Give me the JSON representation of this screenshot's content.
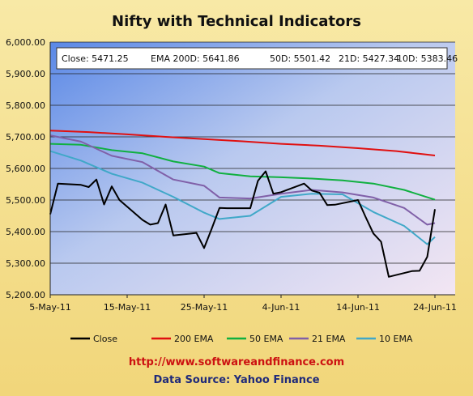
{
  "chart_data": {
    "type": "line",
    "title": "Nifty with Technical Indicators",
    "annotation": {
      "close": "Close: 5471.25",
      "ema200": "EMA  200D: 5641.86",
      "ema50": "50D: 5501.42",
      "ema21": "21D: 5427.34",
      "ema10": "10D: 5383.46"
    },
    "ylim": [
      5200,
      6000
    ],
    "y_ticks": [
      "5,200.00",
      "5,300.00",
      "5,400.00",
      "5,500.00",
      "5,600.00",
      "5,700.00",
      "5,800.00",
      "5,900.00",
      "6,000.00"
    ],
    "y_tick_values": [
      5200,
      5300,
      5400,
      5500,
      5600,
      5700,
      5800,
      5900,
      6000
    ],
    "x_ticks": [
      {
        "label": "5-May-11",
        "day": 0
      },
      {
        "label": "15-May-11",
        "day": 10
      },
      {
        "label": "25-May-11",
        "day": 20
      },
      {
        "label": "4-Jun-11",
        "day": 30
      },
      {
        "label": "14-Jun-11",
        "day": 40
      },
      {
        "label": "24-Jun-11",
        "day": 50
      }
    ],
    "x_range": [
      0,
      50
    ],
    "grid": "horizontal",
    "legend_position": "bottom",
    "series": [
      {
        "name": "Close",
        "color": "#000000",
        "days": [
          0,
          1,
          4,
          5,
          6,
          7,
          8,
          9,
          12,
          13,
          14,
          15,
          16,
          19,
          20,
          21,
          22,
          23,
          26,
          27,
          28,
          29,
          30,
          33,
          34,
          35,
          36,
          37,
          40,
          41,
          42,
          43,
          44,
          47,
          48,
          49,
          50
        ],
        "values": [
          5455,
          5552,
          5548,
          5541,
          5565,
          5486,
          5543,
          5500,
          5437,
          5422,
          5427,
          5486,
          5388,
          5396,
          5348,
          5410,
          5475,
          5474,
          5474,
          5561,
          5591,
          5520,
          5525,
          5552,
          5530,
          5523,
          5484,
          5485,
          5500,
          5446,
          5394,
          5368,
          5257,
          5275,
          5276,
          5320,
          5471
        ]
      },
      {
        "name": "200 EMA",
        "color": "#e01010",
        "days": [
          0,
          5,
          10,
          15,
          20,
          25,
          30,
          35,
          40,
          45,
          50
        ],
        "values": [
          5720,
          5715,
          5708,
          5700,
          5693,
          5686,
          5678,
          5672,
          5664,
          5655,
          5641
        ]
      },
      {
        "name": "50 EMA",
        "color": "#10b040",
        "days": [
          0,
          4,
          8,
          12,
          16,
          20,
          22,
          26,
          30,
          34,
          38,
          42,
          46,
          50
        ],
        "values": [
          5678,
          5675,
          5658,
          5648,
          5622,
          5606,
          5585,
          5575,
          5572,
          5568,
          5562,
          5552,
          5532,
          5501
        ]
      },
      {
        "name": "21 EMA",
        "color": "#8060a8",
        "days": [
          0,
          4,
          8,
          12,
          16,
          20,
          22,
          26,
          30,
          34,
          38,
          42,
          46,
          49,
          50
        ],
        "values": [
          5705,
          5685,
          5640,
          5620,
          5565,
          5545,
          5508,
          5505,
          5520,
          5532,
          5524,
          5508,
          5475,
          5422,
          5427
        ]
      },
      {
        "name": "10 EMA",
        "color": "#40a8c8",
        "days": [
          0,
          4,
          8,
          12,
          16,
          20,
          22,
          26,
          30,
          34,
          38,
          42,
          46,
          49,
          50
        ],
        "values": [
          5655,
          5625,
          5583,
          5555,
          5510,
          5460,
          5440,
          5450,
          5510,
          5520,
          5518,
          5462,
          5418,
          5360,
          5383
        ]
      }
    ]
  },
  "footer": {
    "website": "http://www.softwareandfinance.com",
    "source": "Data Source: Yahoo Finance"
  }
}
